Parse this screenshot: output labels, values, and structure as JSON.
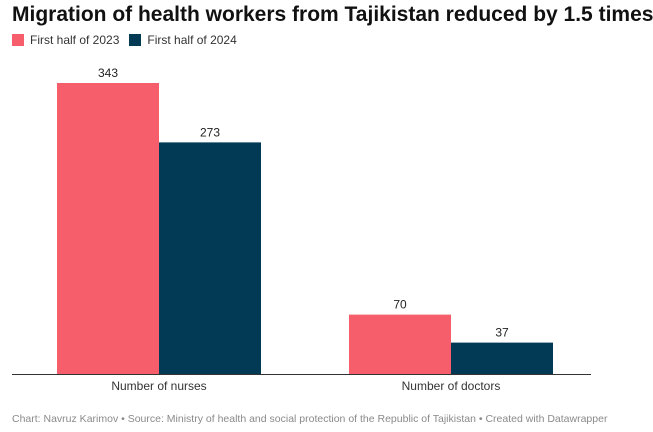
{
  "colors": {
    "series_2023": "#f65e6b",
    "series_2024": "#023a55",
    "axis": "#333333"
  },
  "chart_data": {
    "type": "bar",
    "title": "Migration of health workers from Tajikistan reduced by 1.5 times",
    "categories": [
      "Number of nurses",
      "Number of doctors"
    ],
    "series": [
      {
        "name": "First half of 2023",
        "values": [
          343,
          70
        ]
      },
      {
        "name": "First half of 2024",
        "values": [
          273,
          37
        ]
      }
    ],
    "ylim": [
      0,
      343
    ],
    "grid": false,
    "legend": "top-left"
  },
  "footer": "Chart: Navruz Karimov • Source: Ministry of health and social protection of the Republic of Tajikistan • Created with Datawrapper"
}
